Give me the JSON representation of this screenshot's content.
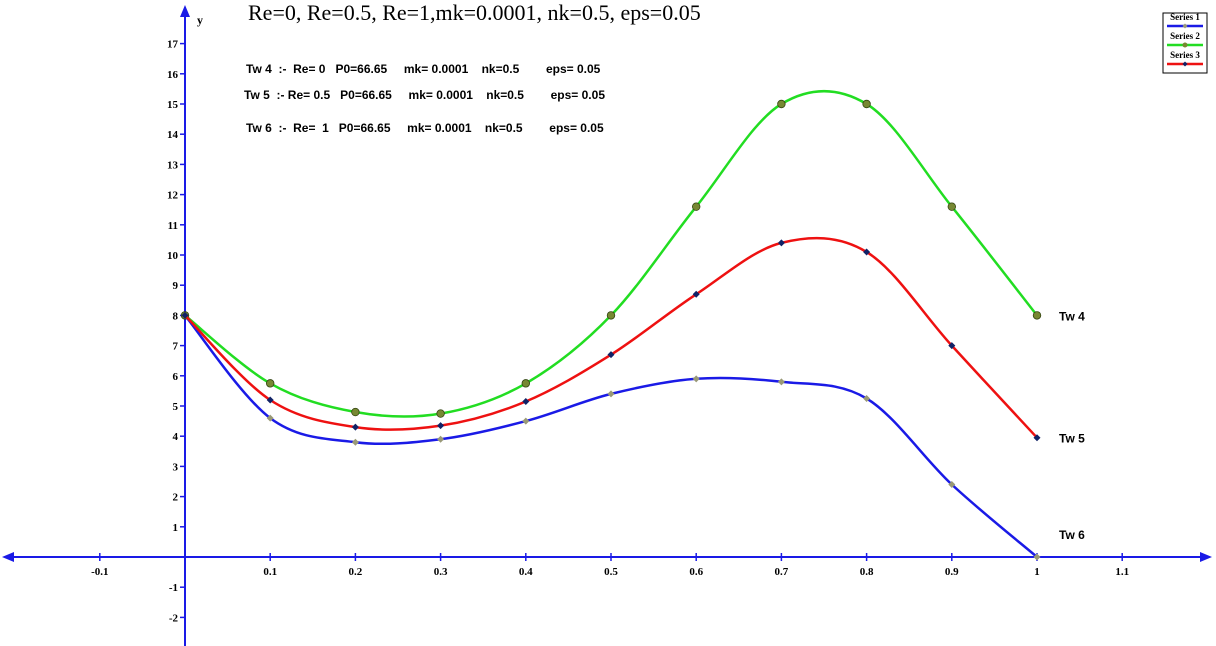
{
  "title_fragment": "Re=0, Re=0.5, Re=1,mk=0.0001, nk=0.5, eps=0.05",
  "parameter_lines": [
    "Tw 4  :-  Re= 0   P0=66.65     mk= 0.0001    nk=0.5        eps= 0.05",
    "Tw 5  :- Re= 0.5   P0=66.65     mk= 0.0001    nk=0.5        eps= 0.05",
    "Tw 6  :-  Re=  1   P0=66.65     mk= 0.0001    nk=0.5        eps= 0.05"
  ],
  "legend": {
    "placement": "top-right",
    "entries": [
      "Series 1",
      "Series 2",
      "Series 3"
    ]
  },
  "colors": {
    "axis": "#1a1ae6",
    "series_1": "#1a1ae6",
    "series_2": "#22dd22",
    "series_3": "#ee1111",
    "marker_1": "#999977",
    "marker_2": "#778833",
    "marker_3": "#112266"
  },
  "chart_data": {
    "type": "line",
    "xlabel": "",
    "ylabel": "y",
    "xlim": [
      -0.22,
      1.2
    ],
    "ylim": [
      -2.9,
      17.7
    ],
    "x_ticks": [
      -0.1,
      0.1,
      0.2,
      0.3,
      0.4,
      0.5,
      0.6,
      0.7,
      0.8,
      0.9,
      1,
      1.1
    ],
    "y_ticks": [
      -2,
      -1,
      1,
      2,
      3,
      4,
      5,
      6,
      7,
      8,
      9,
      10,
      11,
      12,
      13,
      14,
      15,
      16,
      17
    ],
    "x": [
      0,
      0.1,
      0.2,
      0.3,
      0.4,
      0.5,
      0.6,
      0.7,
      0.8,
      0.9,
      1
    ],
    "series": [
      {
        "name": "Series 1",
        "label": "Tw 6",
        "values": [
          8,
          4.6,
          3.8,
          3.9,
          4.5,
          5.4,
          5.9,
          5.8,
          5.25,
          2.4,
          0
        ]
      },
      {
        "name": "Series 2",
        "label": "Tw 4",
        "values": [
          8,
          5.75,
          4.8,
          4.75,
          5.75,
          8,
          11.6,
          15,
          15,
          11.6,
          8
        ]
      },
      {
        "name": "Series 3",
        "label": "Tw 5",
        "values": [
          8,
          5.2,
          4.3,
          4.35,
          5.15,
          6.7,
          8.7,
          10.4,
          10.1,
          7,
          3.95
        ]
      }
    ]
  }
}
